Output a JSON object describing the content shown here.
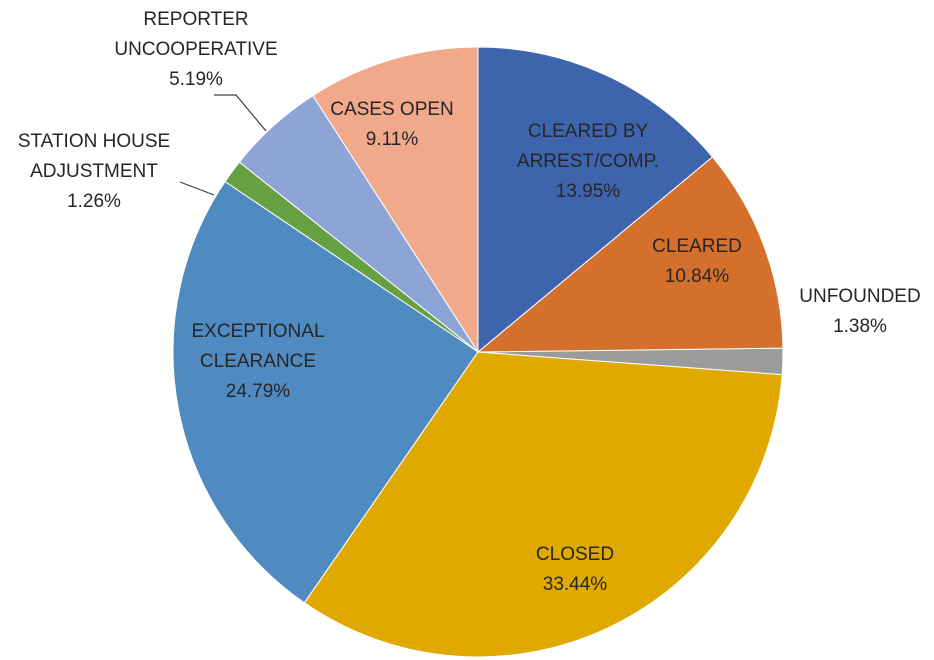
{
  "chart_data": {
    "type": "pie",
    "categories": [
      "CLEARED BY ARREST/COMP.",
      "CLEARED",
      "UNFOUNDED",
      "CLOSED",
      "EXCEPTIONAL CLEARANCE",
      "STATION HOUSE ADJUSTMENT",
      "REPORTER UNCOOPERATIVE",
      "CASES OPEN"
    ],
    "values": [
      13.95,
      10.84,
      1.38,
      33.44,
      24.79,
      1.26,
      5.19,
      9.11
    ],
    "value_labels": [
      "13.95%",
      "10.84%",
      "1.38%",
      "33.44%",
      "24.79%",
      "1.26%",
      "5.19%",
      "9.11%"
    ],
    "colors": [
      "#3e64ad",
      "#d5702c",
      "#9b9b9b",
      "#e0a900",
      "#4f8bc1",
      "#67a043",
      "#8fa4d6",
      "#f0a98b"
    ]
  }
}
